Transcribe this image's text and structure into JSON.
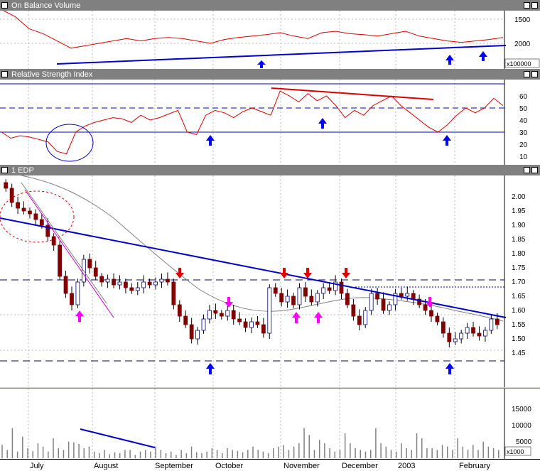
{
  "panels": {
    "obv": {
      "title": "On Balance Volume",
      "ticks": [
        "1500",
        "2000"
      ],
      "scale_label": "x100000"
    },
    "rsi": {
      "title": "Relative Strength Index",
      "ticks": [
        "60",
        "50",
        "40",
        "30",
        "20",
        "10"
      ]
    },
    "price": {
      "title": "1 EDP",
      "ticks": [
        "2.00",
        "1.95",
        "1.90",
        "1.85",
        "1.80",
        "1.75",
        "1.70",
        "1.65",
        "1.60",
        "1.55",
        "1.50",
        "1.45"
      ]
    },
    "volume": {
      "ticks": [
        "15000",
        "10000",
        "5000"
      ],
      "scale_label": "x1000"
    }
  },
  "x_axis_labels": [
    "July",
    "August",
    "September",
    "October",
    "November",
    "December",
    "2003",
    "February"
  ],
  "colors": {
    "panel_title_bg": "#808080",
    "price_up": "#ffffff",
    "price_down": "#800000",
    "trend_blue": "#0000cc",
    "rsi_red": "#dd0000",
    "arrow_blue": "#0000ff",
    "arrow_red": "#dd0000",
    "arrow_magenta": "#ff00ff"
  },
  "chart_data": [
    {
      "type": "line",
      "title": "On Balance Volume",
      "unit": "x100000",
      "y_ticks": [
        -1500,
        -2000
      ],
      "series": [
        {
          "values": [
            -1300,
            -1450,
            -1700,
            -1800,
            -1950,
            -2100,
            -2050,
            -2000,
            -1950,
            -1900,
            -1950,
            -1900,
            -1880,
            -1900,
            -1950,
            -2000,
            -1920,
            -1880,
            -1850,
            -1820,
            -1780,
            -1850,
            -1900,
            -1780,
            -1750,
            -1800,
            -1820,
            -1850,
            -1800,
            -1750,
            -1850,
            -1900,
            -1950,
            -1980,
            -1950,
            -1920,
            -1880
          ]
        }
      ]
    },
    {
      "type": "line",
      "title": "Relative Strength Index",
      "y_ticks": [
        60,
        50,
        40,
        30,
        20,
        10
      ],
      "ylim": [
        5,
        70
      ],
      "series": [
        {
          "values": [
            30,
            25,
            27,
            26,
            24,
            22,
            14,
            12,
            30,
            35,
            38,
            40,
            42,
            41,
            38,
            44,
            40,
            42,
            45,
            48,
            30,
            28,
            44,
            48,
            46,
            42,
            47,
            50,
            47,
            44,
            64,
            60,
            55,
            62,
            56,
            60,
            52,
            42,
            48,
            44,
            52,
            56,
            60,
            52,
            46,
            40,
            34,
            30,
            36,
            44,
            50,
            46,
            50,
            58,
            52
          ]
        }
      ]
    },
    {
      "type": "candlestick",
      "title": "1 EDP",
      "y_ticks": [
        2.0,
        1.95,
        1.9,
        1.85,
        1.8,
        1.75,
        1.7,
        1.65,
        1.6,
        1.55,
        1.5,
        1.45
      ],
      "ylim": [
        1.4,
        2.05
      ],
      "closes": [
        2.03,
        1.98,
        1.96,
        1.95,
        1.94,
        1.92,
        1.9,
        1.86,
        1.83,
        1.72,
        1.66,
        1.62,
        1.7,
        1.78,
        1.75,
        1.72,
        1.7,
        1.71,
        1.69,
        1.7,
        1.68,
        1.67,
        1.68,
        1.7,
        1.69,
        1.7,
        1.71,
        1.7,
        1.62,
        1.58,
        1.55,
        1.5,
        1.53,
        1.57,
        1.6,
        1.59,
        1.58,
        1.6,
        1.57,
        1.56,
        1.54,
        1.56,
        1.55,
        1.52,
        1.68,
        1.66,
        1.63,
        1.65,
        1.62,
        1.68,
        1.65,
        1.63,
        1.66,
        1.68,
        1.67,
        1.7,
        1.66,
        1.62,
        1.58,
        1.55,
        1.6,
        1.66,
        1.64,
        1.6,
        1.62,
        1.66,
        1.65,
        1.66,
        1.64,
        1.62,
        1.6,
        1.58,
        1.56,
        1.52,
        1.49,
        1.5,
        1.52,
        1.54,
        1.52,
        1.51,
        1.53,
        1.57,
        1.55
      ]
    },
    {
      "type": "bar",
      "title": "Volume",
      "unit": "x1000",
      "y_ticks": [
        15000,
        10000,
        5000
      ],
      "values": [
        4000,
        2500,
        9000,
        2000,
        6500,
        3000,
        2200,
        4500,
        3500,
        2000,
        6000,
        3000,
        2500,
        5000,
        4800,
        4300,
        3000,
        3500,
        2000,
        1500,
        2500,
        1200,
        1800,
        1500,
        2500,
        2500,
        1000,
        2000,
        2500,
        2000,
        3500,
        2500,
        1500,
        2000,
        1000,
        2500,
        1500,
        3500,
        1800,
        1500,
        2000,
        3000,
        2500,
        1500,
        3000,
        2500,
        2200,
        1800,
        2500,
        3500,
        2500,
        2000,
        1500,
        3000,
        3500,
        4000,
        2500,
        3500,
        4500,
        9000,
        7000,
        2500,
        5500,
        4500,
        3000,
        2000,
        2500,
        7500,
        4500,
        3000,
        2500,
        2000,
        2500,
        9000,
        4500,
        3500,
        2500,
        2000,
        4500,
        3000,
        2500,
        7500,
        6000,
        3000,
        3000,
        2500,
        4000,
        3500,
        2500,
        6000,
        3500,
        2500,
        4000,
        2500,
        5000,
        3500,
        3000,
        2500
      ]
    }
  ]
}
